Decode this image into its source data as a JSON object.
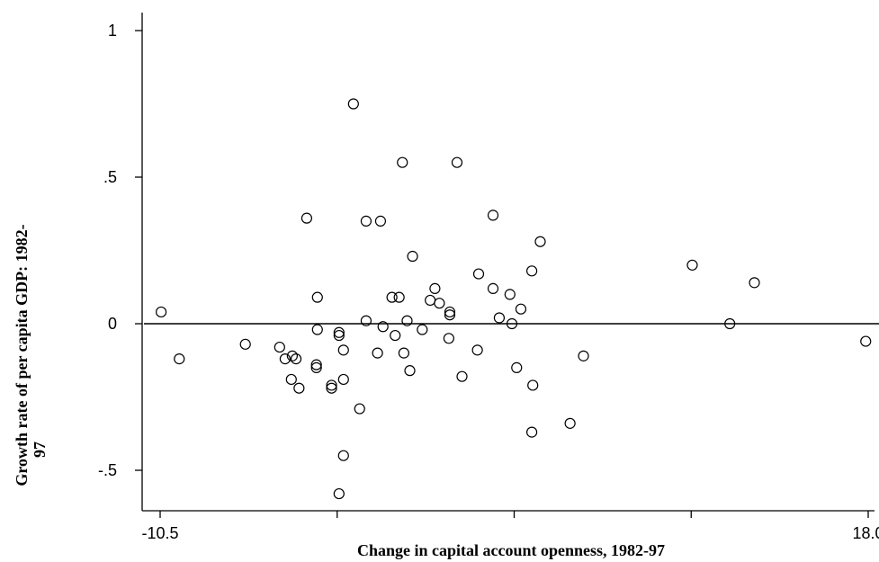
{
  "chart_data": {
    "type": "scatter",
    "title": "",
    "xlabel": "Change in capital account openness, 1982-97",
    "ylabel_lines": [
      "Growth rate of per capita GDP: 1982-",
      "97"
    ],
    "xlim": [
      -10.5,
      18.0
    ],
    "ylim": [
      -0.6,
      1.0
    ],
    "x_ticks": [
      -10.5,
      18.0
    ],
    "x_tick_labels": [
      "-10.5",
      "18.0"
    ],
    "x_minor_ticks": [
      -3.375,
      3.75,
      10.875
    ],
    "y_ticks": [
      -0.5,
      0,
      0.5,
      1
    ],
    "y_tick_labels": [
      "-.5",
      "0",
      ".5",
      "1"
    ],
    "reference_line": {
      "axis": "y",
      "value": 0
    },
    "grid": false,
    "legend": "none",
    "marker": "hollow-circle",
    "series": [
      {
        "points": [
          [
            -10.46,
            0.04
          ],
          [
            -9.73,
            -0.12
          ],
          [
            -7.07,
            -0.07
          ],
          [
            -5.69,
            -0.08
          ],
          [
            -5.47,
            -0.12
          ],
          [
            -5.22,
            -0.19
          ],
          [
            -5.18,
            -0.11
          ],
          [
            -5.03,
            -0.12
          ],
          [
            -4.91,
            -0.22
          ],
          [
            -4.6,
            0.36
          ],
          [
            -4.17,
            0.09
          ],
          [
            -4.21,
            -0.14
          ],
          [
            -4.21,
            -0.15
          ],
          [
            -4.17,
            -0.02
          ],
          [
            -3.6,
            -0.21
          ],
          [
            -3.6,
            -0.22
          ],
          [
            -3.3,
            -0.03
          ],
          [
            -3.3,
            -0.04
          ],
          [
            -3.3,
            -0.58
          ],
          [
            -3.12,
            -0.45
          ],
          [
            -3.12,
            -0.09
          ],
          [
            -3.12,
            -0.19
          ],
          [
            -2.72,
            0.75
          ],
          [
            -2.47,
            -0.29
          ],
          [
            -2.21,
            0.35
          ],
          [
            -2.21,
            0.01
          ],
          [
            -1.75,
            -0.1
          ],
          [
            -1.63,
            0.35
          ],
          [
            -1.53,
            -0.01
          ],
          [
            -1.17,
            0.09
          ],
          [
            -1.04,
            -0.04
          ],
          [
            -0.88,
            0.09
          ],
          [
            -0.75,
            0.55
          ],
          [
            -0.69,
            -0.1
          ],
          [
            -0.56,
            0.01
          ],
          [
            -0.45,
            -0.16
          ],
          [
            -0.34,
            0.23
          ],
          [
            0.05,
            -0.02
          ],
          [
            0.37,
            0.08
          ],
          [
            0.56,
            0.12
          ],
          [
            0.74,
            0.07
          ],
          [
            1.12,
            -0.05
          ],
          [
            1.16,
            0.04
          ],
          [
            1.16,
            0.03
          ],
          [
            1.45,
            0.55
          ],
          [
            1.65,
            -0.18
          ],
          [
            2.32,
            0.17
          ],
          [
            2.27,
            -0.09
          ],
          [
            2.9,
            0.37
          ],
          [
            2.9,
            0.12
          ],
          [
            3.15,
            0.02
          ],
          [
            3.58,
            0.1
          ],
          [
            3.66,
            0.0
          ],
          [
            3.85,
            -0.15
          ],
          [
            4.02,
            0.05
          ],
          [
            4.46,
            0.18
          ],
          [
            4.5,
            -0.21
          ],
          [
            4.46,
            -0.37
          ],
          [
            4.8,
            0.28
          ],
          [
            6.0,
            -0.34
          ],
          [
            6.54,
            -0.11
          ],
          [
            10.92,
            0.2
          ],
          [
            12.43,
            0.0
          ],
          [
            13.42,
            0.14
          ],
          [
            17.9,
            -0.06
          ]
        ]
      }
    ]
  }
}
